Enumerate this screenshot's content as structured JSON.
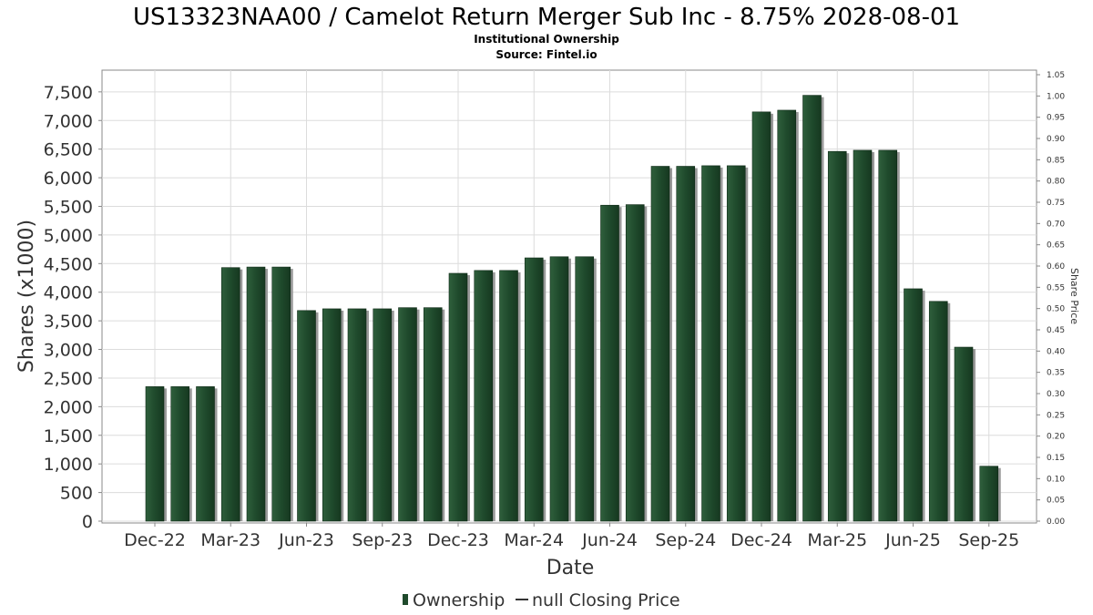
{
  "chart_data": {
    "type": "bar",
    "title": "US13323NAA00 / Camelot Return Merger Sub Inc - 8.75% 2028-08-01",
    "subtitle": "Institutional Ownership",
    "source": "Source: Fintel.io",
    "xlabel": "Date",
    "ylabel": "Shares (x1000)",
    "y2label": "Share Price",
    "ylim": [
      0,
      7800
    ],
    "y_ticks": [
      "0",
      "500",
      "1,000",
      "1,500",
      "2,000",
      "2,500",
      "3,000",
      "3,500",
      "4,000",
      "4,500",
      "5,000",
      "5,500",
      "6,000",
      "6,500",
      "7,000",
      "7,500"
    ],
    "y2lim": [
      0,
      1.05
    ],
    "y2_ticks": [
      "0.00",
      "0.05",
      "0.10",
      "0.15",
      "0.20",
      "0.25",
      "0.30",
      "0.35",
      "0.40",
      "0.45",
      "0.50",
      "0.55",
      "0.60",
      "0.65",
      "0.70",
      "0.75",
      "0.80",
      "0.85",
      "0.90",
      "0.95",
      "1.00",
      "1.05"
    ],
    "x_ticks": [
      "Dec-22",
      "Mar-23",
      "Jun-23",
      "Sep-23",
      "Dec-23",
      "Mar-24",
      "Jun-24",
      "Sep-24",
      "Dec-24",
      "Mar-25",
      "Jun-25",
      "Sep-25"
    ],
    "series": [
      {
        "name": "Ownership",
        "color": "#1f4a2c",
        "values": [
          2350,
          2350,
          2350,
          4430,
          4440,
          4440,
          3680,
          3710,
          3710,
          3710,
          3730,
          3730,
          4330,
          4380,
          4380,
          4600,
          4620,
          4620,
          5520,
          5530,
          6200,
          6200,
          6210,
          6210,
          7150,
          7180,
          7440,
          6460,
          6480,
          6480,
          4060,
          3840,
          3040,
          960
        ]
      }
    ],
    "legend": [
      {
        "label": "Ownership",
        "marker": "bar"
      },
      {
        "label": "null Closing Price",
        "marker": "line"
      }
    ],
    "legend_position": "bottom",
    "grid": true
  }
}
